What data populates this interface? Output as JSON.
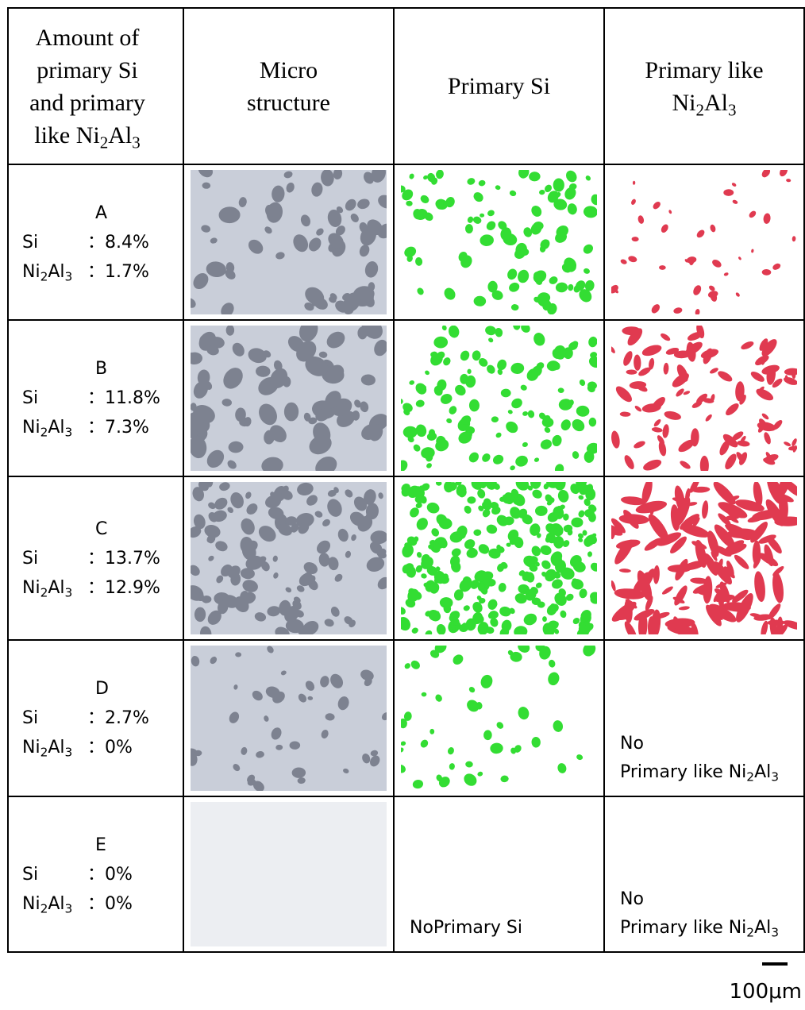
{
  "header": [
    {
      "parts": [
        "Amount of primary Si and primary like Ni",
        "2",
        "Al",
        "3"
      ]
    },
    {
      "parts": [
        "Micro structure"
      ]
    },
    {
      "parts": [
        "Primary Si"
      ]
    },
    {
      "parts": [
        "Primary like Ni",
        "2",
        "Al",
        "3"
      ]
    }
  ],
  "labels": {
    "si": "Si",
    "ni": [
      "Ni",
      "2",
      "Al",
      "3"
    ],
    "colon": "："
  },
  "rows": [
    {
      "id": "A",
      "si": "8.4%",
      "ni": "1.7%"
    },
    {
      "id": "B",
      "si": "11.8%",
      "ni": "7.3%"
    },
    {
      "id": "C",
      "si": "13.7%",
      "ni": "12.9%"
    },
    {
      "id": "D",
      "si": "2.7%",
      "ni": "0%"
    },
    {
      "id": "E",
      "si": "0%",
      "ni": "0%"
    }
  ],
  "none_si": [
    "No",
    "Primary Si"
  ],
  "none_ni": [
    "No",
    "Primary like Ni",
    "2",
    "Al",
    "3"
  ],
  "scale_bar": "100μm"
}
